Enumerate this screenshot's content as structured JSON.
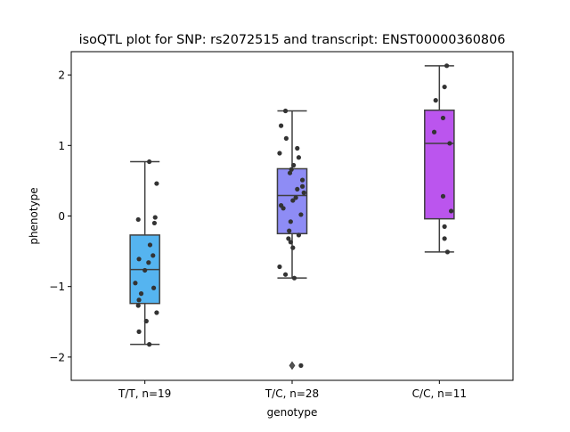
{
  "chart_data": {
    "type": "box",
    "title": "isoQTL plot for SNP: rs2072515 and transcript: ENST00000360806",
    "xlabel": "genotype",
    "ylabel": "phenotype",
    "ylim": [
      -2.33,
      2.33
    ],
    "yticks": [
      2,
      1,
      0,
      -1,
      -2
    ],
    "ytick_labels": [
      "2",
      "1",
      "0",
      "−1",
      "−2"
    ],
    "grid": false,
    "legend": "none",
    "categories": [
      "T/T, n=19",
      "T/C, n=28",
      "C/C, n=11"
    ],
    "groups": [
      {
        "label": "T/T, n=19",
        "color": "#55b4f0",
        "q1": -1.24,
        "median": -0.76,
        "q3": -0.27,
        "whisker_low": -1.82,
        "whisker_high": 0.77,
        "outliers": [],
        "points": [
          {
            "dx": 0.06,
            "y": 0.77
          },
          {
            "dx": 0.16,
            "y": 0.46
          },
          {
            "dx": -0.09,
            "y": -0.05
          },
          {
            "dx": 0.14,
            "y": -0.02
          },
          {
            "dx": 0.13,
            "y": -0.1
          },
          {
            "dx": 0.07,
            "y": -0.41
          },
          {
            "dx": 0.11,
            "y": -0.56
          },
          {
            "dx": -0.08,
            "y": -0.61
          },
          {
            "dx": 0.05,
            "y": -0.66
          },
          {
            "dx": 0.0,
            "y": -0.77
          },
          {
            "dx": -0.13,
            "y": -0.95
          },
          {
            "dx": 0.12,
            "y": -1.02
          },
          {
            "dx": -0.05,
            "y": -1.1
          },
          {
            "dx": -0.08,
            "y": -1.19
          },
          {
            "dx": -0.09,
            "y": -1.27
          },
          {
            "dx": 0.16,
            "y": -1.37
          },
          {
            "dx": 0.02,
            "y": -1.49
          },
          {
            "dx": -0.08,
            "y": -1.64
          },
          {
            "dx": 0.06,
            "y": -1.82
          }
        ]
      },
      {
        "label": "T/C, n=28",
        "color": "#8e8cf5",
        "q1": -0.25,
        "median": 0.29,
        "q3": 0.67,
        "whisker_low": -0.88,
        "whisker_high": 1.49,
        "outliers": [
          -2.12
        ],
        "points": [
          {
            "dx": -0.09,
            "y": 1.49
          },
          {
            "dx": -0.15,
            "y": 1.28
          },
          {
            "dx": -0.08,
            "y": 1.1
          },
          {
            "dx": 0.07,
            "y": 0.96
          },
          {
            "dx": -0.17,
            "y": 0.89
          },
          {
            "dx": 0.09,
            "y": 0.83
          },
          {
            "dx": 0.02,
            "y": 0.72
          },
          {
            "dx": -0.01,
            "y": 0.66
          },
          {
            "dx": -0.03,
            "y": 0.61
          },
          {
            "dx": 0.14,
            "y": 0.51
          },
          {
            "dx": 0.14,
            "y": 0.42
          },
          {
            "dx": 0.07,
            "y": 0.38
          },
          {
            "dx": 0.16,
            "y": 0.33
          },
          {
            "dx": 0.01,
            "y": 0.22
          },
          {
            "dx": 0.05,
            "y": 0.26
          },
          {
            "dx": -0.15,
            "y": 0.15
          },
          {
            "dx": -0.12,
            "y": 0.11
          },
          {
            "dx": 0.12,
            "y": 0.02
          },
          {
            "dx": -0.02,
            "y": -0.08
          },
          {
            "dx": 0.09,
            "y": -0.27
          },
          {
            "dx": -0.04,
            "y": -0.21
          },
          {
            "dx": -0.02,
            "y": -0.37
          },
          {
            "dx": -0.05,
            "y": -0.32
          },
          {
            "dx": 0.01,
            "y": -0.45
          },
          {
            "dx": -0.17,
            "y": -0.72
          },
          {
            "dx": -0.09,
            "y": -0.83
          },
          {
            "dx": 0.03,
            "y": -0.88
          },
          {
            "dx": 0.12,
            "y": -2.12
          }
        ]
      },
      {
        "label": "C/C, n=11",
        "color": "#bb55ee",
        "q1": -0.04,
        "median": 1.03,
        "q3": 1.5,
        "whisker_low": -0.51,
        "whisker_high": 2.13,
        "outliers": [],
        "points": [
          {
            "dx": 0.1,
            "y": 2.13
          },
          {
            "dx": 0.07,
            "y": 1.83
          },
          {
            "dx": -0.05,
            "y": 1.64
          },
          {
            "dx": 0.05,
            "y": 1.39
          },
          {
            "dx": -0.07,
            "y": 1.19
          },
          {
            "dx": 0.14,
            "y": 1.03
          },
          {
            "dx": 0.05,
            "y": 0.28
          },
          {
            "dx": 0.16,
            "y": 0.07
          },
          {
            "dx": 0.07,
            "y": -0.15
          },
          {
            "dx": 0.07,
            "y": -0.32
          },
          {
            "dx": 0.11,
            "y": -0.51
          }
        ]
      }
    ]
  }
}
